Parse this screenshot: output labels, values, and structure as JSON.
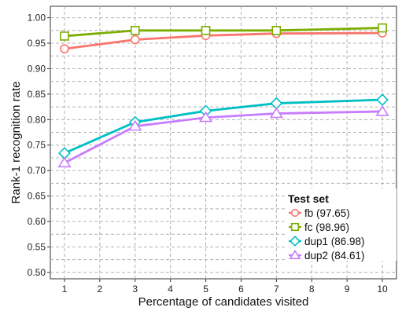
{
  "chart_data": {
    "type": "line",
    "xlabel": "Percentage of candidates visited",
    "ylabel": "Rank-1 recognition rate",
    "xlim": [
      0.6,
      10.4
    ],
    "ylim": [
      0.4875,
      1.0225
    ],
    "x_ticks": [
      1,
      2,
      3,
      4,
      5,
      6,
      7,
      8,
      9,
      10
    ],
    "y_ticks": [
      0.5,
      0.55,
      0.6,
      0.65,
      0.7,
      0.75,
      0.8,
      0.85,
      0.9,
      0.95,
      1.0
    ],
    "y_tick_labels": [
      "0.50",
      "0.55",
      "0.60",
      "0.65",
      "0.70",
      "0.75",
      "0.80",
      "0.85",
      "0.90",
      "0.95",
      "1.00"
    ],
    "grid": true,
    "legend": {
      "title": "Test set",
      "placement": "bottom-right"
    },
    "series": [
      {
        "name": "fb (97.65)",
        "color": "#f8766d",
        "marker": "circle",
        "x": [
          1,
          3,
          5,
          7,
          10
        ],
        "y": [
          0.939,
          0.957,
          0.965,
          0.969,
          0.97
        ]
      },
      {
        "name": "fc (98.96)",
        "color": "#7cae00",
        "marker": "square",
        "x": [
          1,
          3,
          5,
          7,
          10
        ],
        "y": [
          0.964,
          0.975,
          0.975,
          0.975,
          0.98
        ]
      },
      {
        "name": "dup1 (86.98)",
        "color": "#00bfc4",
        "marker": "diamond",
        "x": [
          1,
          3,
          5,
          7,
          10
        ],
        "y": [
          0.734,
          0.795,
          0.817,
          0.832,
          0.839
        ]
      },
      {
        "name": "dup2 (84.61)",
        "color": "#c77cff",
        "marker": "triangle",
        "x": [
          1,
          3,
          5,
          7,
          10
        ],
        "y": [
          0.715,
          0.787,
          0.804,
          0.812,
          0.816
        ]
      }
    ]
  }
}
